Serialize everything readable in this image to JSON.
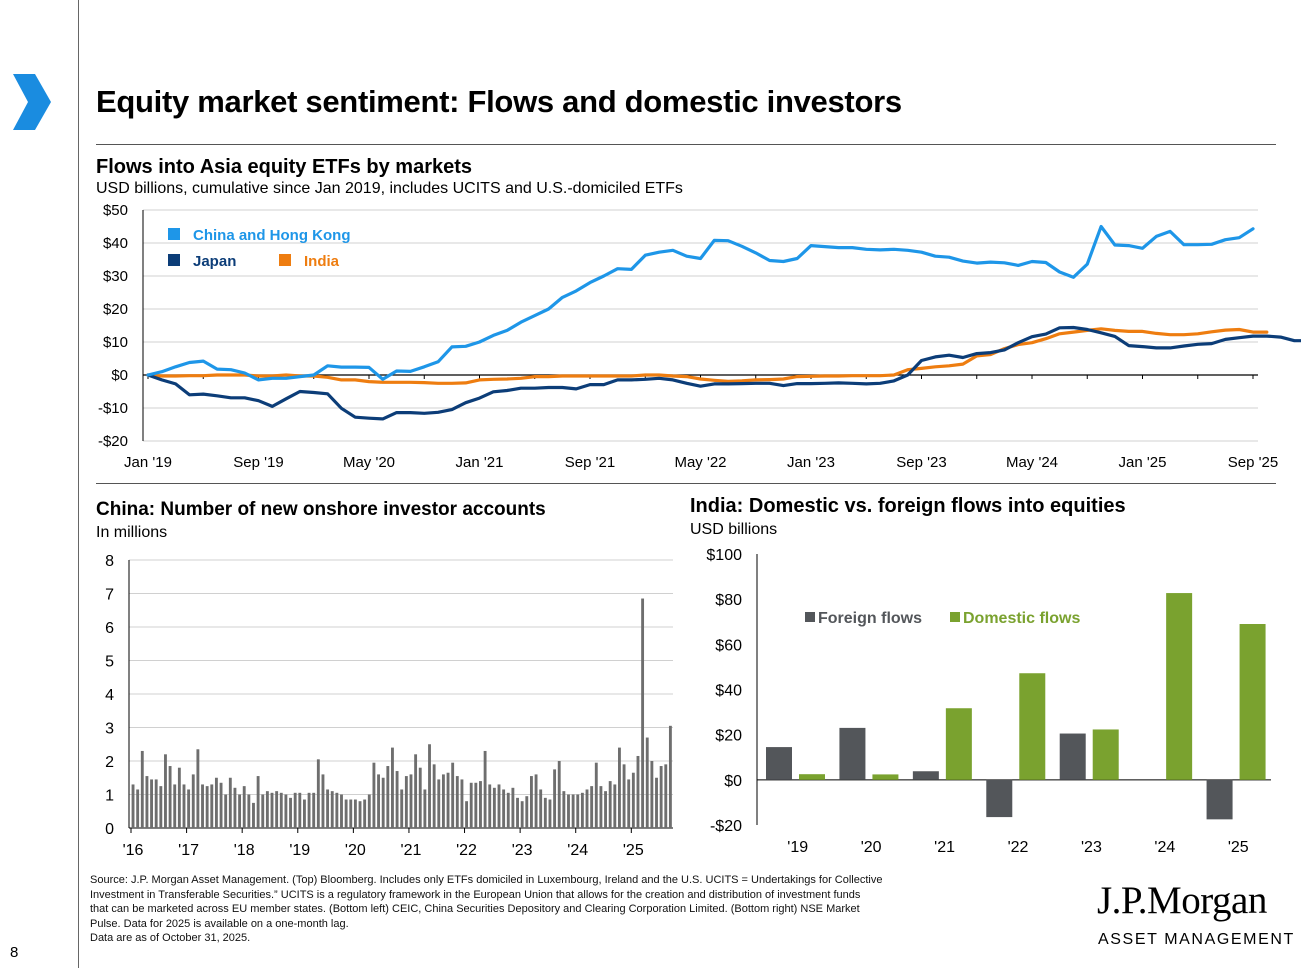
{
  "title": "Equity market sentiment: Flows and domestic investors",
  "page_number": "8",
  "colors": {
    "china": "#1e96e8",
    "japan": "#0c3d78",
    "india": "#ee7d10",
    "foreign": "#53565a",
    "domestic": "#7aa22f",
    "accent": "#1a8ce0"
  },
  "logo": {
    "name": "J.P.Morgan",
    "sub": "ASSET MANAGEMENT"
  },
  "source": {
    "lines": [
      "Source: J.P. Morgan Asset Management. (Top) Bloomberg. Includes only ETFs domiciled in Luxembourg, Ireland and the U.S. UCITS = Undertakings for Collective",
      "Investment in Transferable Securities.” UCITS is a regulatory framework in the European Union that allows for the creation and distribution of investment funds",
      "that can be marketed across EU member states. (Bottom left) CEIC, China Securities Depository and Clearing Corporation Limited. (Bottom right) NSE Market",
      "Pulse. Data for 2025 is available on a one-month lag.",
      "Data are as of October 31, 2025."
    ]
  },
  "chart_data": [
    {
      "type": "line",
      "title": "Flows into Asia equity ETFs by markets",
      "subtitle": "USD billions, cumulative since Jan 2019, includes UCITS and U.S.-domiciled ETFs",
      "xlabel": "",
      "ylabel": "",
      "ylim": [
        -20,
        50
      ],
      "y_ticks": [
        50,
        40,
        30,
        20,
        10,
        0,
        -10,
        -20
      ],
      "y_tick_labels": [
        "$50",
        "$40",
        "$30",
        "$20",
        "$10",
        "$0",
        "-$10",
        "-$20"
      ],
      "x_tick_labels": [
        "Jan '19",
        "Sep '19",
        "May '20",
        "Jan '21",
        "Sep '21",
        "May '22",
        "Jan '23",
        "Sep '23",
        "May '24",
        "Jan '25",
        "Sep '25"
      ],
      "x_start": "Jan 2019",
      "months": 81,
      "series": [
        {
          "name": "China and Hong Kong",
          "values": [
            0,
            1,
            2.5,
            3.8,
            4.2,
            1.8,
            1.6,
            0.6,
            -1.5,
            -1,
            -1,
            -0.5,
            0,
            2.8,
            2.4,
            2.4,
            2.3,
            -1.3,
            1.2,
            1.1,
            2.5,
            4,
            8.5,
            8.7,
            10,
            12,
            13.5,
            16,
            18,
            20,
            23.5,
            25.5,
            28,
            30,
            32.2,
            32,
            36.3,
            37.2,
            37.8,
            36,
            35.3,
            40.8,
            40.7,
            39,
            37,
            34.7,
            34.4,
            35.3,
            39.2,
            38.9,
            38.6,
            38.6,
            38.1,
            37.9,
            38.1,
            37.8,
            37.2,
            36,
            35.7,
            34.5,
            33.9,
            34.2,
            34,
            33.2,
            34.4,
            34.1,
            31.2,
            29.6,
            33.6,
            45,
            39.4,
            39.2,
            38.4,
            42,
            43.5,
            39.5,
            39.5,
            39.6,
            41,
            41.6,
            44.3
          ]
        },
        {
          "name": "Japan",
          "values": [
            0,
            -1.5,
            -2.7,
            -6,
            -5.8,
            -6.3,
            -6.9,
            -6.9,
            -7.8,
            -9.5,
            -7.2,
            -5,
            -5.3,
            -5.7,
            -10.1,
            -12.8,
            -13.1,
            -13.3,
            -11.4,
            -11.4,
            -11.6,
            -11.3,
            -10.5,
            -8.4,
            -7,
            -5.1,
            -4.7,
            -4,
            -4,
            -3.8,
            -3.8,
            -4.2,
            -2.9,
            -2.9,
            -1.5,
            -1.5,
            -1.3,
            -1,
            -1.5,
            -2.5,
            -3.4,
            -2.7,
            -2.7,
            -2.6,
            -2.5,
            -2.5,
            -3.2,
            -2.6,
            -2.6,
            -2.5,
            -2.4,
            -2.5,
            -2.7,
            -2.5,
            -1.8,
            0,
            4.4,
            5.5,
            6,
            5.3,
            6.5,
            6.8,
            7.6,
            9.8,
            11.6,
            12.4,
            14.3,
            14.4,
            13.8,
            12.8,
            11.7,
            8.9,
            8.6,
            8.2,
            8.2,
            8.8,
            9.3,
            9.5,
            10.8,
            11.3,
            11.8,
            11.8,
            11.5,
            10.4,
            10.4
          ]
        },
        {
          "name": "India",
          "values": [
            0,
            -0.3,
            -0.3,
            -0.2,
            -0.2,
            0,
            0,
            0,
            -0.3,
            -0.3,
            0,
            -0.3,
            -0.3,
            -0.7,
            -1.5,
            -1.5,
            -2,
            -2.2,
            -2.2,
            -2.2,
            -2.3,
            -2.5,
            -2.5,
            -2.4,
            -1.5,
            -1.3,
            -1.2,
            -1,
            -0.5,
            -0.5,
            -0.3,
            -0.3,
            -0.3,
            -0.3,
            -0.3,
            -0.3,
            0,
            0,
            -0.3,
            -0.5,
            -1.2,
            -1.6,
            -1.9,
            -1.8,
            -1.5,
            -1.4,
            -1.2,
            -0.5,
            -0.4,
            -0.3,
            -0.3,
            -0.2,
            -0.2,
            -0.2,
            0,
            1.6,
            2,
            2.5,
            2.8,
            3.3,
            5.8,
            6.2,
            8,
            9.2,
            9.8,
            11,
            12.5,
            13,
            13.5,
            14,
            13.5,
            13.2,
            13.2,
            12.6,
            12.2,
            12.2,
            12.5,
            13.1,
            13.6,
            13.8,
            13,
            13
          ]
        }
      ],
      "legend": [
        "China and Hong Kong",
        "Japan",
        "India"
      ]
    },
    {
      "type": "bar",
      "title": "China: Number of new onshore investor accounts",
      "subtitle": "In millions",
      "ylim": [
        0,
        8
      ],
      "y_ticks": [
        8,
        7,
        6,
        5,
        4,
        3,
        2,
        1,
        0
      ],
      "x_tick_labels": [
        "'16",
        "'17",
        "'18",
        "'19",
        "'20",
        "'21",
        "'22",
        "'23",
        "'24",
        "'25"
      ],
      "x_start": "Jan 2016",
      "months": 117,
      "values": [
        1.3,
        1.15,
        2.3,
        1.55,
        1.45,
        1.45,
        1.25,
        2.2,
        1.85,
        1.3,
        1.8,
        1.3,
        1.15,
        1.6,
        2.35,
        1.3,
        1.25,
        1.3,
        1.5,
        1.35,
        1.0,
        1.5,
        1.2,
        1.0,
        1.25,
        1.0,
        0.75,
        1.55,
        1.0,
        1.1,
        1.05,
        1.1,
        1.05,
        1.0,
        0.9,
        1.05,
        1.05,
        0.85,
        1.05,
        1.05,
        2.05,
        1.6,
        1.15,
        1.1,
        1.05,
        1.0,
        0.85,
        0.85,
        0.85,
        0.8,
        0.85,
        1.0,
        1.95,
        1.6,
        1.5,
        1.85,
        2.4,
        1.7,
        1.15,
        1.55,
        1.6,
        2.2,
        1.8,
        1.15,
        2.5,
        1.9,
        1.45,
        1.6,
        1.65,
        1.95,
        1.55,
        1.45,
        0.8,
        1.35,
        1.35,
        1.4,
        2.3,
        1.3,
        1.2,
        1.3,
        1.15,
        1.05,
        1.2,
        0.9,
        0.8,
        0.95,
        1.55,
        1.6,
        1.15,
        0.9,
        0.85,
        1.75,
        2.0,
        1.1,
        1.0,
        1.0,
        1.0,
        1.05,
        1.15,
        1.25,
        1.95,
        1.25,
        1.1,
        1.4,
        1.3,
        2.4,
        1.9,
        1.45,
        1.65,
        2.15,
        6.85,
        2.7,
        2.0,
        1.5,
        1.85,
        1.9,
        3.05
      ]
    },
    {
      "type": "bar",
      "title": "India: Domestic vs. foreign flows into equities",
      "subtitle": "USD billions",
      "ylim": [
        -20,
        100
      ],
      "y_ticks": [
        100,
        80,
        60,
        40,
        20,
        0,
        -20
      ],
      "y_tick_labels": [
        "$100",
        "$80",
        "$60",
        "$40",
        "$20",
        "$0",
        "-$20"
      ],
      "categories": [
        "'19",
        "'20",
        "'21",
        "'22",
        "'23",
        "'24",
        "'25"
      ],
      "series": [
        {
          "name": "Foreign flows",
          "values": [
            14.5,
            23,
            3.8,
            -16.5,
            20.5,
            0,
            -17.5
          ]
        },
        {
          "name": "Domestic flows",
          "values": [
            2.5,
            2.4,
            31.7,
            47.2,
            22.3,
            82.7,
            69
          ]
        }
      ],
      "legend": [
        "Foreign flows",
        "Domestic flows"
      ]
    }
  ]
}
